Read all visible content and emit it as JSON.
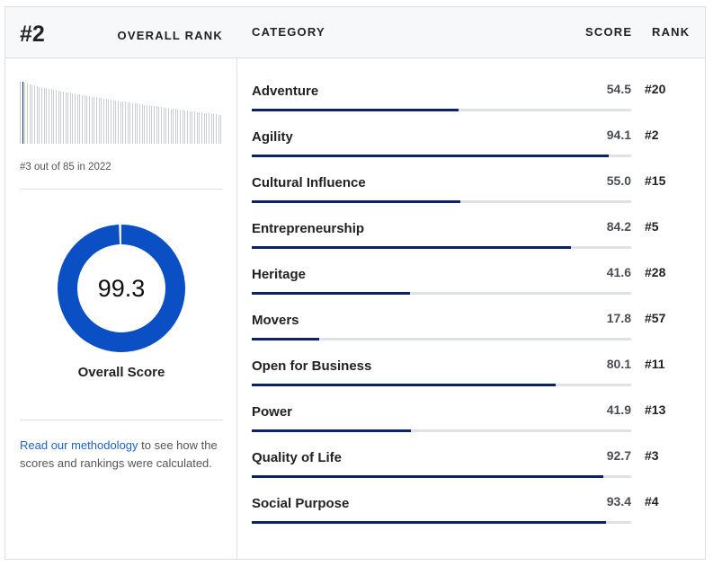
{
  "header": {
    "rank": "#2",
    "overall_rank_label": "OVERALL RANK",
    "category_label": "CATEGORY",
    "score_label": "SCORE",
    "rank_label": "RANK"
  },
  "sparkline": {
    "caption": "#3 out of 85 in 2022",
    "highlight_index": 1,
    "count": 85
  },
  "overall": {
    "score": "99.3",
    "score_value": 99.3,
    "label": "Overall Score",
    "ring_color": "#0a4fc4"
  },
  "methodology": {
    "link_text": "Read our methodology",
    "rest_text": " to see how the scores and rankings were calculated."
  },
  "categories": [
    {
      "name": "Adventure",
      "score": "54.5",
      "rank": "#20",
      "value": 54.5
    },
    {
      "name": "Agility",
      "score": "94.1",
      "rank": "#2",
      "value": 94.1
    },
    {
      "name": "Cultural Influence",
      "score": "55.0",
      "rank": "#15",
      "value": 55.0
    },
    {
      "name": "Entrepreneurship",
      "score": "84.2",
      "rank": "#5",
      "value": 84.2
    },
    {
      "name": "Heritage",
      "score": "41.6",
      "rank": "#28",
      "value": 41.6
    },
    {
      "name": "Movers",
      "score": "17.8",
      "rank": "#57",
      "value": 17.8
    },
    {
      "name": "Open for Business",
      "score": "80.1",
      "rank": "#11",
      "value": 80.1
    },
    {
      "name": "Power",
      "score": "41.9",
      "rank": "#13",
      "value": 41.9
    },
    {
      "name": "Quality of Life",
      "score": "92.7",
      "rank": "#3",
      "value": 92.7
    },
    {
      "name": "Social Purpose",
      "score": "93.4",
      "rank": "#4",
      "value": 93.4
    }
  ]
}
